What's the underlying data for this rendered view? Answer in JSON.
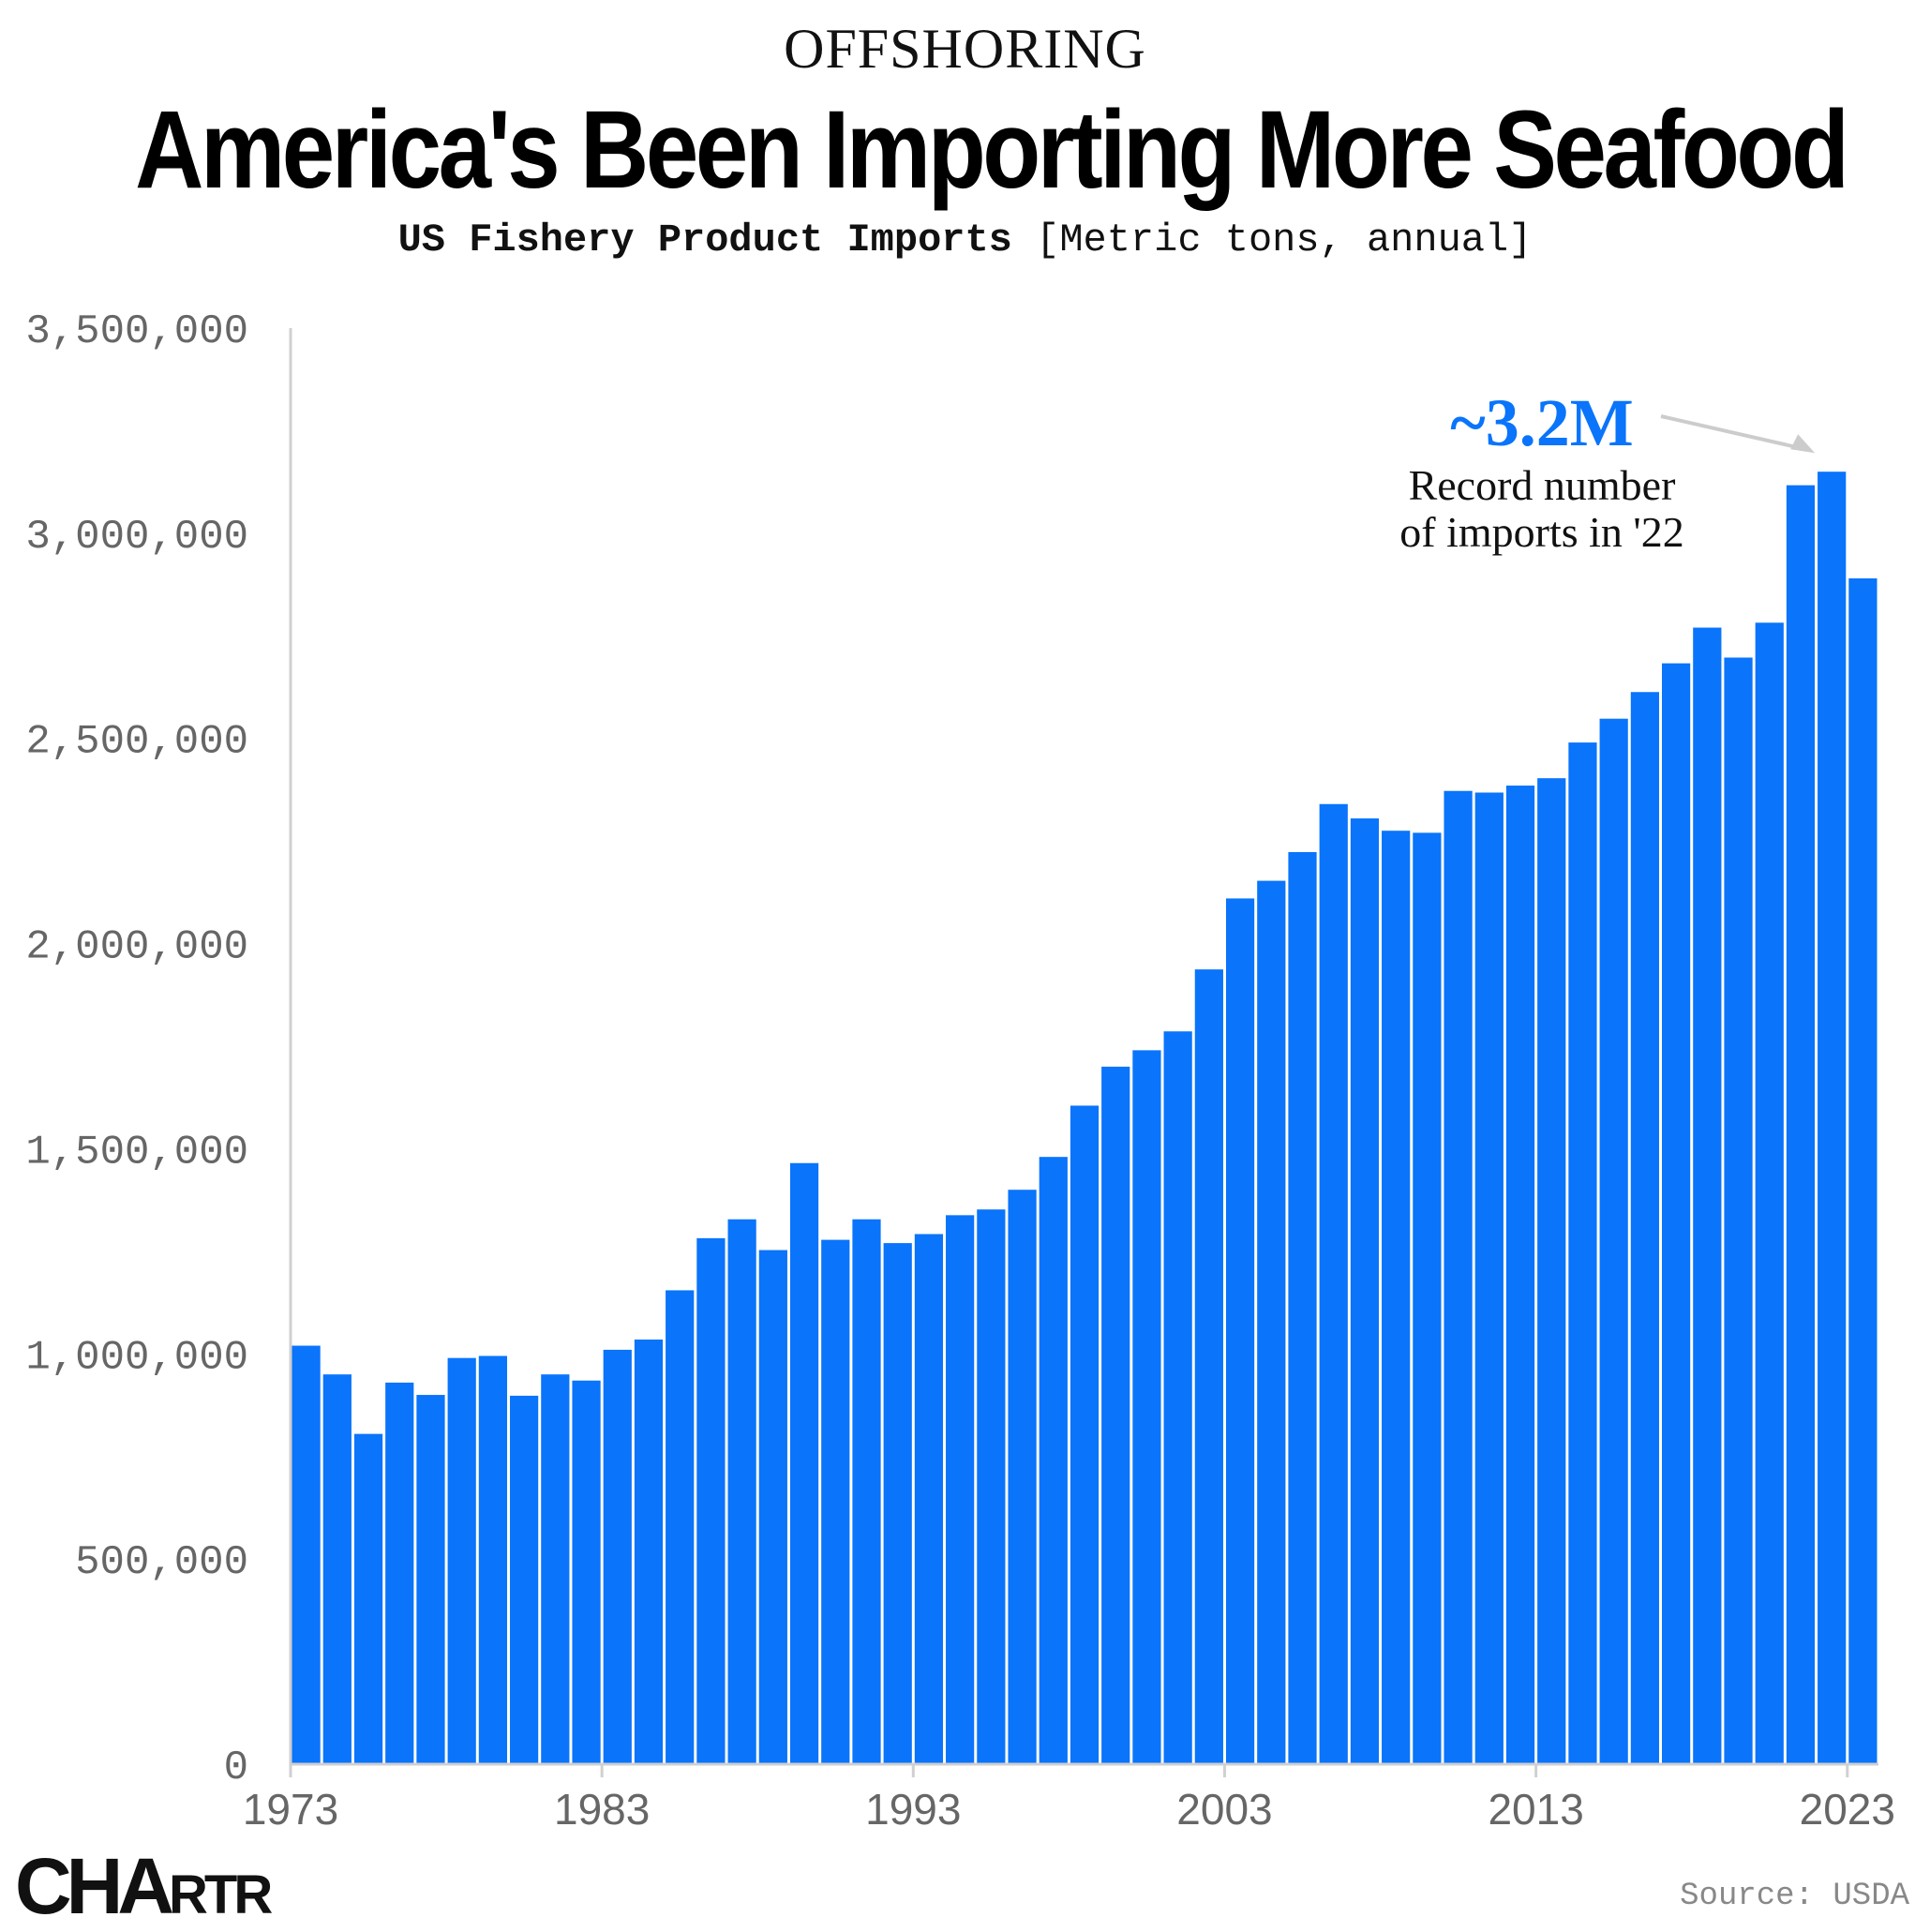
{
  "header": {
    "kicker": "OFFSHORING",
    "title": "America's Been Importing More Seafood",
    "subtitle_bold": "US Fishery Product Imports",
    "subtitle_unit": "[Metric tons, annual]"
  },
  "footer": {
    "logo_big": "CHA",
    "logo_small": "RTR",
    "source": "Source: USDA"
  },
  "colors": {
    "bar": "#0a74fb",
    "axis": "#d0d0d0",
    "tick_text": "#666666",
    "annotation": "#0a74fb",
    "arrow": "#cccccc"
  },
  "chart_data": {
    "type": "bar",
    "title": "America's Been Importing More Seafood",
    "subtitle": "US Fishery Product Imports [Metric tons, annual]",
    "xlabel": "",
    "ylabel": "",
    "ylim": [
      0,
      3500000
    ],
    "yticks": [
      0,
      500000,
      1000000,
      1500000,
      2000000,
      2500000,
      3000000,
      3500000
    ],
    "ytick_labels": [
      "0",
      "500,000",
      "1,000,000",
      "1,500,000",
      "2,000,000",
      "2,500,000",
      "3,000,000",
      "3,500,000"
    ],
    "xtick_labels": [
      "1973",
      "1983",
      "1993",
      "2003",
      "2013",
      "2023"
    ],
    "grid": false,
    "categories": [
      1973,
      1974,
      1975,
      1976,
      1977,
      1978,
      1979,
      1980,
      1981,
      1982,
      1983,
      1984,
      1985,
      1986,
      1987,
      1988,
      1989,
      1990,
      1991,
      1992,
      1993,
      1994,
      1995,
      1996,
      1997,
      1998,
      1999,
      2000,
      2001,
      2002,
      2003,
      2004,
      2005,
      2006,
      2007,
      2008,
      2009,
      2010,
      2011,
      2012,
      2013,
      2014,
      2015,
      2016,
      2017,
      2018,
      2019,
      2020,
      2021,
      2022,
      2023
    ],
    "values": [
      1020000,
      950000,
      805000,
      930000,
      900000,
      990000,
      995000,
      898000,
      950000,
      935000,
      1010000,
      1035000,
      1155000,
      1282000,
      1328000,
      1253000,
      1465000,
      1278000,
      1328000,
      1270000,
      1292000,
      1338000,
      1352000,
      1400000,
      1480000,
      1605000,
      1700000,
      1740000,
      1786000,
      1937000,
      2110000,
      2153000,
      2223000,
      2340000,
      2305000,
      2275000,
      2270000,
      2372000,
      2368000,
      2385000,
      2403000,
      2490000,
      2548000,
      2613000,
      2683000,
      2770000,
      2697000,
      2782000,
      3117000,
      3150000,
      2890000
    ],
    "annotation": {
      "value_label": "~3.2M",
      "text_line1": "Record number",
      "text_line2": "of imports in '22",
      "year": 2022
    }
  }
}
